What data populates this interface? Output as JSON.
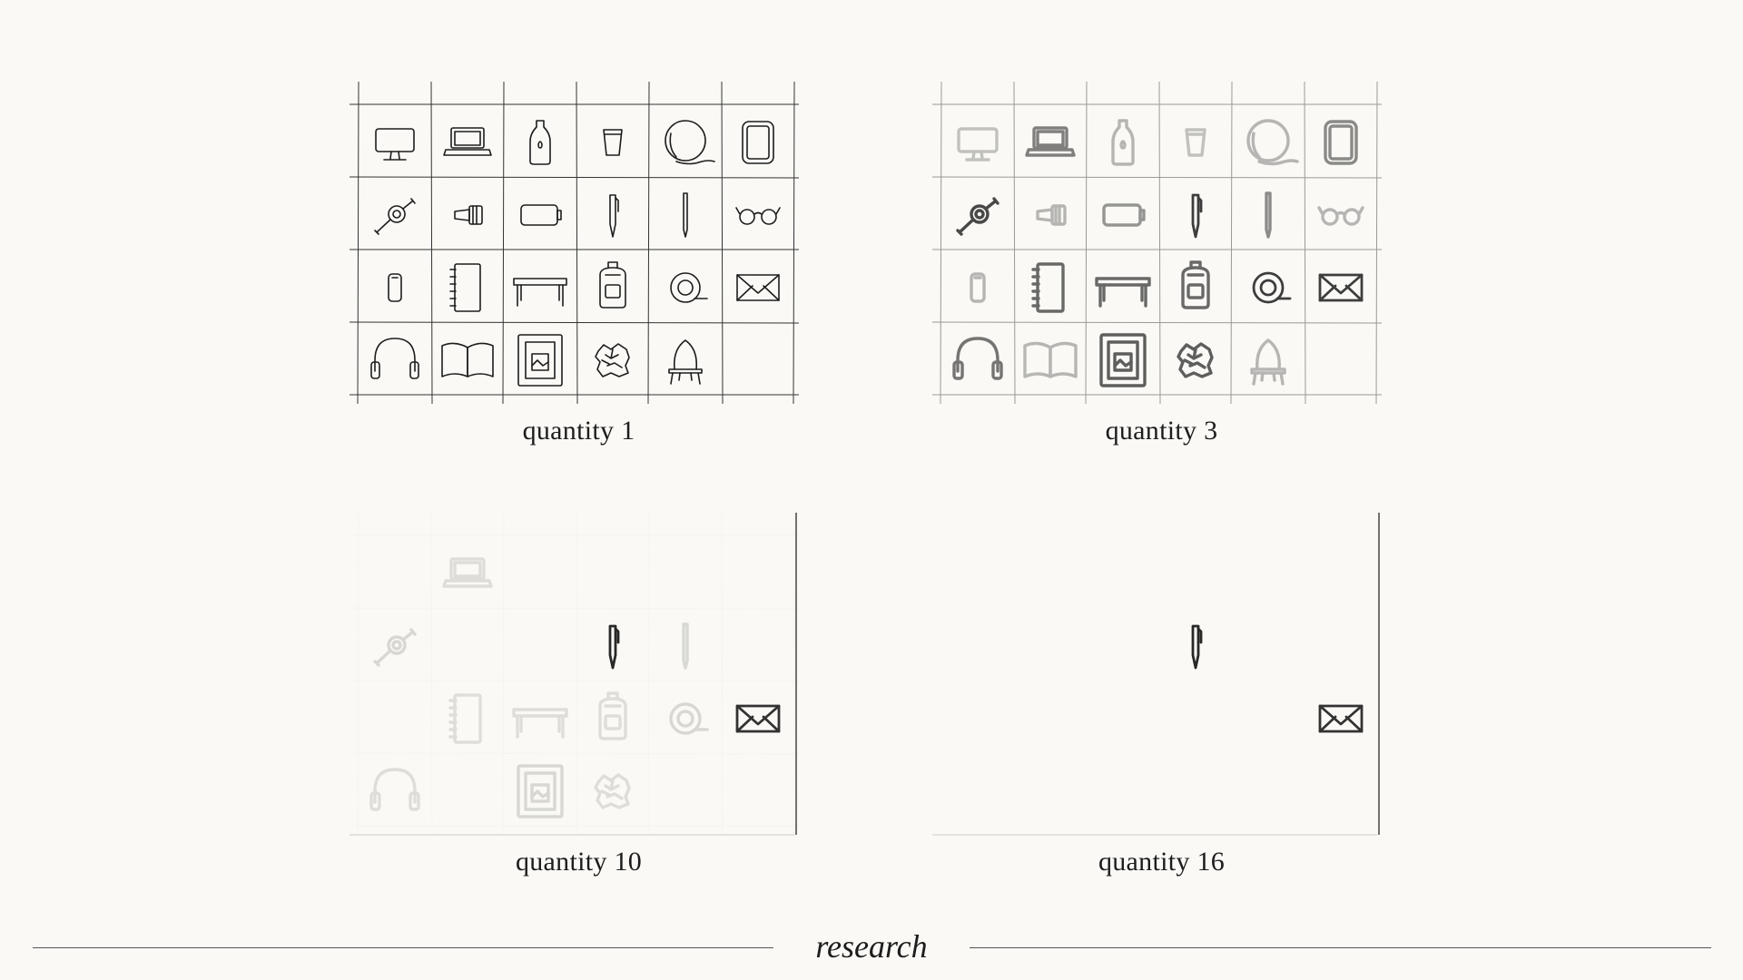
{
  "panels": [
    {
      "id": "q1",
      "caption": "quantity 1",
      "fade_level": 0.0
    },
    {
      "id": "q3",
      "caption": "quantity 3",
      "fade_level": 0.45
    },
    {
      "id": "q10",
      "caption": "quantity 10",
      "fade_level": 0.85
    },
    {
      "id": "q16",
      "caption": "quantity 16",
      "fade_level": 1.0
    }
  ],
  "grid": {
    "rows": 4,
    "columns": 6
  },
  "objects": [
    "monitor-icon",
    "laptop-icon",
    "bottle-icon",
    "cup-icon",
    "globe-icon",
    "tablet-icon",
    "cable-icon",
    "flashlight-icon",
    "battery-icon",
    "pen-icon",
    "pencil-icon",
    "glasses-icon",
    "phone-icon",
    "notebook-icon",
    "table-icon",
    "backpack-icon",
    "tape-icon",
    "envelope-icon",
    "headphones-icon",
    "book-icon",
    "picture-frame-icon",
    "crumpled-paper-icon",
    "chair-icon"
  ],
  "panel_icon_opacity": {
    "q1": [
      1,
      1,
      1,
      1,
      1,
      1,
      1,
      1,
      1,
      1,
      1,
      1,
      1,
      1,
      1,
      1,
      1,
      1,
      1,
      1,
      1,
      1,
      1
    ],
    "q3": [
      0.25,
      0.55,
      0.3,
      0.25,
      0.3,
      0.5,
      0.8,
      0.3,
      0.45,
      0.85,
      0.5,
      0.3,
      0.3,
      0.65,
      0.65,
      0.65,
      0.85,
      0.85,
      0.6,
      0.3,
      0.7,
      0.7,
      0.3
    ],
    "q10": [
      0,
      0.12,
      0,
      0,
      0,
      0,
      0.15,
      0,
      0,
      0.95,
      0.15,
      0,
      0,
      0.12,
      0.12,
      0.12,
      0.15,
      0.9,
      0.12,
      0,
      0.15,
      0.12,
      0
    ],
    "q16": [
      0,
      0,
      0,
      0,
      0,
      0,
      0,
      0,
      0,
      0.95,
      0,
      0,
      0,
      0,
      0,
      0,
      0,
      0.9,
      0,
      0,
      0,
      0,
      0
    ]
  },
  "footer": {
    "label": "research"
  },
  "colors": {
    "background": "#faf9f5",
    "ink": "#1d1d1d",
    "grid_line": "#333333",
    "rule": "#555555"
  }
}
